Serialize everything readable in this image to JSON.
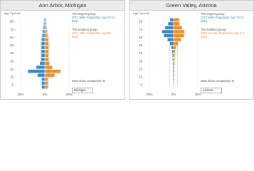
{
  "chart_data": [
    {
      "type": "pyramid",
      "title": "Ann Arbor, Michigan",
      "y_label": "Age Pyramid",
      "ages": [
        0,
        5,
        10,
        15,
        20,
        25,
        30,
        35,
        40,
        45,
        50,
        55,
        60,
        65,
        70,
        75,
        80,
        85
      ],
      "ylim": [
        0,
        90
      ],
      "yticks": [
        5,
        15,
        25,
        35,
        45,
        55,
        65,
        75,
        85
      ],
      "xlim": [
        -20,
        20
      ],
      "xticks": [
        {
          "value": -20,
          "label": "20%"
        },
        {
          "value": 0,
          "label": "0%"
        },
        {
          "value": 20,
          "label": "20%"
        }
      ],
      "series": [
        {
          "color": "#3d86c6",
          "values": [
            2.5,
            2.5,
            2.5,
            6,
            14,
            7,
            4,
            3,
            2.8,
            2.8,
            2.8,
            2.8,
            2.5,
            2,
            1.5,
            1,
            0.6,
            0.5
          ]
        },
        {
          "color": "#f28c28",
          "values": [
            2.4,
            2.4,
            2.4,
            8,
            13,
            6,
            3.8,
            3,
            2.8,
            2.9,
            3,
            3,
            2.7,
            2.1,
            1.6,
            1.1,
            0.8,
            0.9
          ]
        }
      ],
      "comparison": [
        [
          3,
          3.1,
          3.2,
          3.4,
          3.5,
          3.2,
          3,
          3,
          3.1,
          3.3,
          3.5,
          3.5,
          3.2,
          2.6,
          1.9,
          1.3,
          0.8,
          0.7
        ],
        [
          2.9,
          3,
          3.1,
          3.2,
          3.3,
          3.1,
          3,
          3,
          3.1,
          3.3,
          3.6,
          3.6,
          3.4,
          2.8,
          2.1,
          1.5,
          1.1,
          1.3
        ]
      ],
      "largest_heading": "The largest group:",
      "largest_text": "2017 Male Population Age 20-24 (Est)",
      "smallest_heading": "The smallest group:",
      "smallest_text": "2017 Male Population Age 85+ (Est)",
      "compare_text": "Data show comparison to",
      "compare_option": "Michigan"
    },
    {
      "type": "pyramid",
      "title": "Green Valley, Arizona",
      "y_label": "Age Pyramid",
      "ages": [
        0,
        5,
        10,
        15,
        20,
        25,
        30,
        35,
        40,
        45,
        50,
        55,
        60,
        65,
        70,
        75,
        80,
        85
      ],
      "ylim": [
        0,
        90
      ],
      "yticks": [
        5,
        15,
        25,
        35,
        45,
        55,
        65,
        75,
        85
      ],
      "xlim": [
        -20,
        20
      ],
      "xticks": [
        {
          "value": -20,
          "label": "20%"
        },
        {
          "value": 0,
          "label": "0%"
        },
        {
          "value": 20,
          "label": "20%"
        }
      ],
      "series": [
        {
          "color": "#3d86c6",
          "values": [
            0.3,
            0.4,
            0.5,
            0.5,
            0.6,
            0.6,
            0.7,
            0.8,
            0.9,
            1.2,
            1.8,
            3,
            5,
            8,
            9.5,
            7,
            4.5,
            3
          ]
        },
        {
          "color": "#f28c28",
          "values": [
            0.2,
            0.4,
            0.5,
            0.5,
            0.6,
            0.6,
            0.7,
            0.8,
            1,
            1.3,
            2,
            3.5,
            6,
            8.5,
            9,
            7,
            5,
            4.5
          ]
        }
      ],
      "comparison": [
        [
          3,
          3.1,
          3.2,
          3.3,
          3.4,
          3.3,
          3.1,
          3,
          3,
          3.1,
          3.3,
          3.3,
          3.2,
          3,
          2.4,
          1.6,
          1,
          0.8
        ],
        [
          2.9,
          3,
          3.1,
          3.1,
          3.2,
          3.1,
          3,
          3,
          3,
          3.2,
          3.4,
          3.4,
          3.4,
          3.2,
          2.6,
          1.8,
          1.2,
          1.2
        ]
      ],
      "largest_heading": "The largest group:",
      "largest_text": "2017 Male Population Age 70-74 (Est)",
      "smallest_heading": "The smallest group:",
      "smallest_text": "2017 Female Population Age 0-4 (Est)",
      "compare_text": "Data show comparison to",
      "compare_option": "Arizona"
    }
  ]
}
